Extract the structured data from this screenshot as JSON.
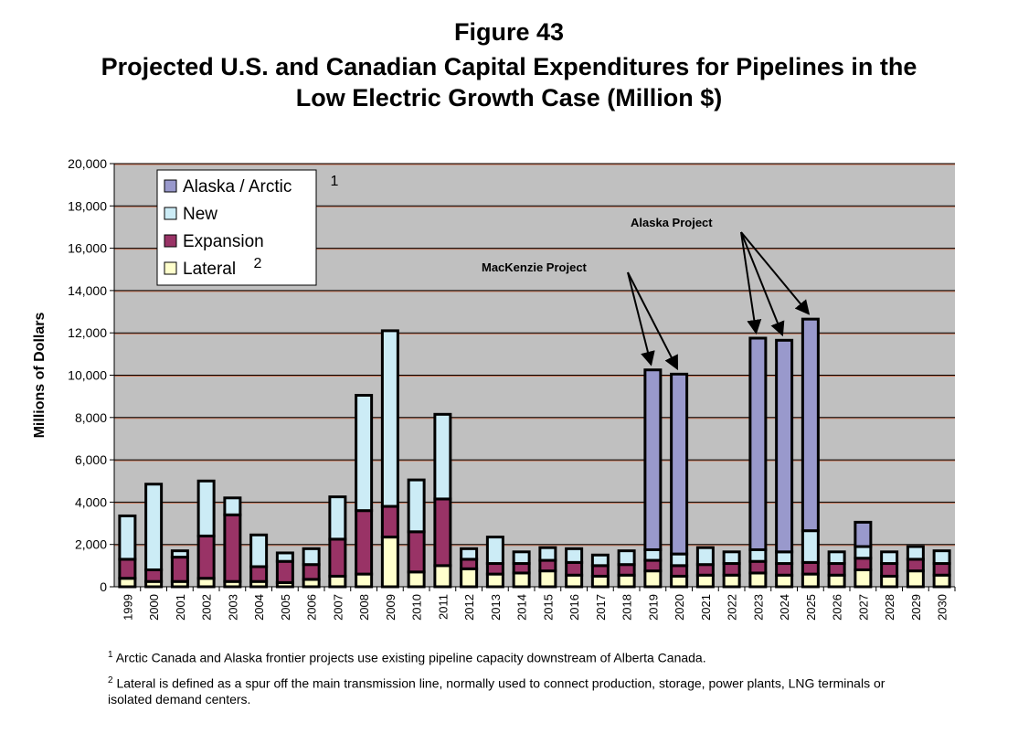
{
  "chart_data": {
    "type": "bar",
    "stacked": true,
    "title": "Figure 43",
    "subtitle": [
      "Projected U.S. and Canadian Capital Expenditures for Pipelines in the",
      "Low Electric Growth Case (Million $)"
    ],
    "xlabel": "",
    "ylabel": "Millions of Dollars",
    "ylim": [
      0,
      20000
    ],
    "yticks": [
      "0",
      "2,000",
      "4,000",
      "6,000",
      "8,000",
      "10,000",
      "12,000",
      "14,000",
      "16,000",
      "18,000",
      "20,000"
    ],
    "grid": true,
    "legend_position": "top-left",
    "categories": [
      "1999",
      "2000",
      "2001",
      "2002",
      "2003",
      "2004",
      "2005",
      "2006",
      "2007",
      "2008",
      "2009",
      "2010",
      "2011",
      "2012",
      "2013",
      "2014",
      "2015",
      "2016",
      "2017",
      "2018",
      "2019",
      "2020",
      "2021",
      "2022",
      "2023",
      "2024",
      "2025",
      "2026",
      "2027",
      "2028",
      "2029",
      "2030"
    ],
    "series": [
      {
        "name": "Lateral",
        "sup": "2",
        "color": "#ffffcc",
        "values": [
          400,
          250,
          250,
          400,
          250,
          250,
          200,
          350,
          500,
          600,
          2350,
          700,
          1000,
          850,
          600,
          650,
          750,
          550,
          500,
          550,
          750,
          500,
          550,
          550,
          650,
          550,
          600,
          550,
          800,
          500,
          750,
          550
        ]
      },
      {
        "name": "Expansion",
        "sup": "",
        "color": "#993366",
        "values": [
          900,
          550,
          1150,
          2000,
          3150,
          700,
          1000,
          700,
          1750,
          3000,
          1450,
          1900,
          3150,
          450,
          500,
          450,
          500,
          600,
          500,
          500,
          500,
          500,
          500,
          550,
          550,
          550,
          550,
          550,
          550,
          600,
          550,
          550
        ]
      },
      {
        "name": "New",
        "sup": "",
        "color": "#ccecf6",
        "values": [
          2050,
          4050,
          300,
          2600,
          800,
          1500,
          400,
          750,
          2000,
          5450,
          8300,
          2450,
          4000,
          500,
          1250,
          550,
          600,
          650,
          500,
          650,
          500,
          550,
          800,
          550,
          550,
          550,
          1500,
          550,
          550,
          550,
          600,
          600
        ]
      },
      {
        "name": "Alaska / Arctic",
        "sup": "1",
        "color": "#9999cc",
        "values": [
          0,
          0,
          0,
          0,
          0,
          0,
          0,
          0,
          0,
          0,
          0,
          0,
          0,
          0,
          0,
          0,
          0,
          0,
          0,
          0,
          8500,
          8500,
          0,
          0,
          10000,
          10000,
          10000,
          0,
          1150,
          0,
          0,
          0
        ]
      }
    ],
    "annotations": [
      {
        "text": "MacKenzie Project",
        "targets": [
          "2019",
          "2020"
        ]
      },
      {
        "text": "Alaska Project",
        "targets": [
          "2023",
          "2024",
          "2025"
        ]
      }
    ],
    "plot_background": "#c0c0c0"
  },
  "footnotes": [
    {
      "mark": "1",
      "text": "Arctic Canada and Alaska frontier projects use existing pipeline capacity downstream of Alberta Canada."
    },
    {
      "mark": "2",
      "text": "Lateral is defined as a spur off the main transmission line, normally used to connect production, storage, power plants, LNG terminals or isolated demand centers."
    }
  ]
}
